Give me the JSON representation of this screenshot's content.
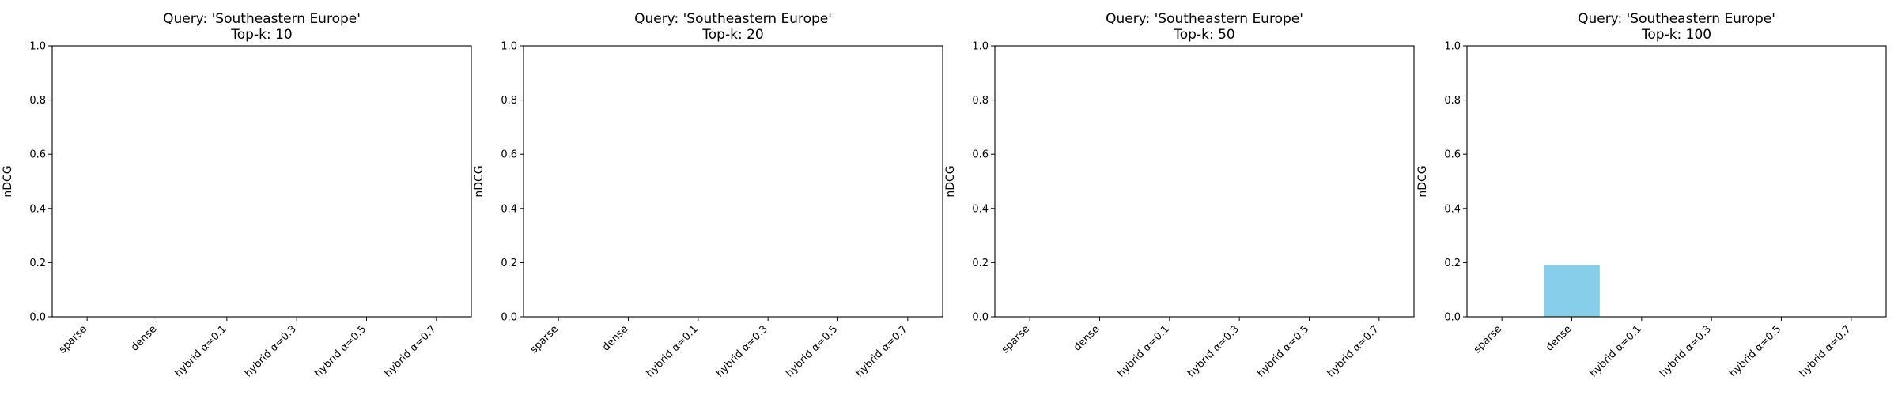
{
  "chart_data": [
    {
      "type": "bar",
      "title": "Query: 'Southeastern Europe'",
      "subtitle": "Top-k: 10",
      "xlabel": "",
      "ylabel": "nDCG",
      "ylim": [
        0,
        1.0
      ],
      "yticks": [
        "0.0",
        "0.2",
        "0.4",
        "0.6",
        "0.8",
        "1.0"
      ],
      "categories": [
        "sparse",
        "dense",
        "hybrid α=0.1",
        "hybrid α=0.3",
        "hybrid α=0.5",
        "hybrid α=0.7"
      ],
      "values": [
        0,
        0,
        0,
        0,
        0,
        0
      ],
      "bar_color": "#87CEEB",
      "grid": false
    },
    {
      "type": "bar",
      "title": "Query: 'Southeastern Europe'",
      "subtitle": "Top-k: 20",
      "xlabel": "",
      "ylabel": "nDCG",
      "ylim": [
        0,
        1.0
      ],
      "yticks": [
        "0.0",
        "0.2",
        "0.4",
        "0.6",
        "0.8",
        "1.0"
      ],
      "categories": [
        "sparse",
        "dense",
        "hybrid α=0.1",
        "hybrid α=0.3",
        "hybrid α=0.5",
        "hybrid α=0.7"
      ],
      "values": [
        0,
        0,
        0,
        0,
        0,
        0
      ],
      "bar_color": "#87CEEB",
      "grid": false
    },
    {
      "type": "bar",
      "title": "Query: 'Southeastern Europe'",
      "subtitle": "Top-k: 50",
      "xlabel": "",
      "ylabel": "nDCG",
      "ylim": [
        0,
        1.0
      ],
      "yticks": [
        "0.0",
        "0.2",
        "0.4",
        "0.6",
        "0.8",
        "1.0"
      ],
      "categories": [
        "sparse",
        "dense",
        "hybrid α=0.1",
        "hybrid α=0.3",
        "hybrid α=0.5",
        "hybrid α=0.7"
      ],
      "values": [
        0,
        0,
        0,
        0,
        0,
        0
      ],
      "bar_color": "#87CEEB",
      "grid": false
    },
    {
      "type": "bar",
      "title": "Query: 'Southeastern Europe'",
      "subtitle": "Top-k: 100",
      "xlabel": "",
      "ylabel": "nDCG",
      "ylim": [
        0,
        1.0
      ],
      "yticks": [
        "0.0",
        "0.2",
        "0.4",
        "0.6",
        "0.8",
        "1.0"
      ],
      "categories": [
        "sparse",
        "dense",
        "hybrid α=0.1",
        "hybrid α=0.3",
        "hybrid α=0.5",
        "hybrid α=0.7"
      ],
      "values": [
        0,
        0.19,
        0,
        0,
        0,
        0
      ],
      "bar_color": "#87CEEB",
      "grid": false
    }
  ]
}
